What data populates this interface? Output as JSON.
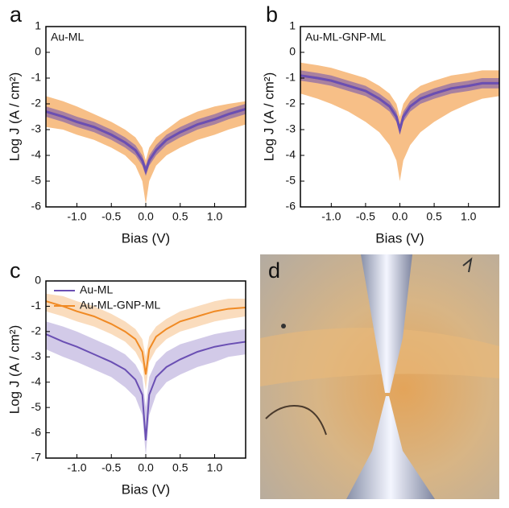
{
  "chart_data": [
    {
      "type": "band-line",
      "panel_label": "a",
      "annotation": "Au-ML",
      "x_label": "Bias (V)",
      "y_label": "Log J (A / cm²)",
      "xlim": [
        -1.45,
        1.45
      ],
      "ylim": [
        -6,
        1
      ],
      "xticks": [
        {
          "value": -1,
          "label": "-1.0"
        },
        {
          "value": -0.5,
          "label": "-0.5"
        },
        {
          "value": 0,
          "label": "0.0"
        },
        {
          "value": 0.5,
          "label": "0.5"
        },
        {
          "value": 1,
          "label": "1.0"
        }
      ],
      "yticks": [
        -6,
        -5,
        -4,
        -3,
        -2,
        -1,
        0,
        1
      ],
      "x": [
        -1.45,
        -1.2,
        -1.0,
        -0.75,
        -0.5,
        -0.3,
        -0.15,
        -0.05,
        0,
        0.05,
        0.15,
        0.3,
        0.5,
        0.75,
        1.0,
        1.2,
        1.45
      ],
      "series": [
        {
          "color": "#f08a24",
          "values": [
            -2.3,
            -2.5,
            -2.7,
            -2.9,
            -3.2,
            -3.5,
            -3.8,
            -4.2,
            -4.6,
            -4.2,
            -3.8,
            -3.4,
            -3.1,
            -2.8,
            -2.6,
            -2.4,
            -2.2
          ],
          "upper": [
            -1.7,
            -1.9,
            -2.1,
            -2.4,
            -2.7,
            -3.0,
            -3.3,
            -3.7,
            -4.2,
            -3.7,
            -3.3,
            -3.0,
            -2.6,
            -2.3,
            -2.1,
            -2.0,
            -1.9
          ],
          "lower": [
            -2.9,
            -3.0,
            -3.2,
            -3.4,
            -3.7,
            -4.0,
            -4.4,
            -5.0,
            -5.9,
            -5.0,
            -4.4,
            -4.0,
            -3.7,
            -3.4,
            -3.2,
            -3.0,
            -2.8
          ]
        },
        {
          "color": "#6a4fb3",
          "values": [
            -2.3,
            -2.5,
            -2.7,
            -2.9,
            -3.2,
            -3.5,
            -3.8,
            -4.2,
            -4.6,
            -4.2,
            -3.8,
            -3.4,
            -3.1,
            -2.8,
            -2.6,
            -2.4,
            -2.2
          ],
          "upper": [
            -2.1,
            -2.3,
            -2.5,
            -2.7,
            -3.0,
            -3.3,
            -3.6,
            -4.0,
            -4.4,
            -4.0,
            -3.6,
            -3.2,
            -2.9,
            -2.6,
            -2.4,
            -2.2,
            -2.0
          ],
          "lower": [
            -2.5,
            -2.7,
            -2.9,
            -3.1,
            -3.4,
            -3.7,
            -4.0,
            -4.4,
            -4.8,
            -4.4,
            -4.0,
            -3.6,
            -3.3,
            -3.0,
            -2.8,
            -2.6,
            -2.4
          ]
        }
      ]
    },
    {
      "type": "band-line",
      "panel_label": "b",
      "annotation": "Au-ML-GNP-ML",
      "x_label": "Bias (V)",
      "y_label": "Log J (A / cm²)",
      "xlim": [
        -1.45,
        1.45
      ],
      "ylim": [
        -6,
        1
      ],
      "xticks": [
        {
          "value": -1,
          "label": "-1.0"
        },
        {
          "value": -0.5,
          "label": "-0.5"
        },
        {
          "value": 0,
          "label": "0.0"
        },
        {
          "value": 0.5,
          "label": "0.5"
        },
        {
          "value": 1,
          "label": "1.0"
        }
      ],
      "yticks": [
        -6,
        -5,
        -4,
        -3,
        -2,
        -1,
        0,
        1
      ],
      "x": [
        -1.45,
        -1.2,
        -1.0,
        -0.75,
        -0.5,
        -0.3,
        -0.15,
        -0.05,
        0,
        0.05,
        0.15,
        0.3,
        0.5,
        0.75,
        1.0,
        1.2,
        1.45
      ],
      "series": [
        {
          "color": "#f08a24",
          "values": [
            -0.9,
            -1.0,
            -1.1,
            -1.3,
            -1.5,
            -1.8,
            -2.1,
            -2.5,
            -3.0,
            -2.5,
            -2.1,
            -1.8,
            -1.6,
            -1.4,
            -1.3,
            -1.2,
            -1.2
          ],
          "upper": [
            -0.4,
            -0.5,
            -0.6,
            -0.8,
            -1.0,
            -1.3,
            -1.6,
            -2.0,
            -2.5,
            -2.0,
            -1.6,
            -1.3,
            -1.1,
            -0.9,
            -0.8,
            -0.7,
            -0.7
          ],
          "lower": [
            -1.6,
            -1.8,
            -2.0,
            -2.3,
            -2.7,
            -3.1,
            -3.6,
            -4.2,
            -5.0,
            -4.2,
            -3.6,
            -3.1,
            -2.7,
            -2.3,
            -2.0,
            -1.8,
            -1.7
          ]
        },
        {
          "color": "#6a4fb3",
          "values": [
            -0.9,
            -1.0,
            -1.1,
            -1.3,
            -1.5,
            -1.8,
            -2.1,
            -2.5,
            -3.0,
            -2.5,
            -2.1,
            -1.8,
            -1.6,
            -1.4,
            -1.3,
            -1.2,
            -1.2
          ],
          "upper": [
            -0.7,
            -0.8,
            -0.9,
            -1.1,
            -1.3,
            -1.6,
            -1.9,
            -2.3,
            -2.8,
            -2.3,
            -1.9,
            -1.6,
            -1.4,
            -1.2,
            -1.1,
            -1.0,
            -1.0
          ],
          "lower": [
            -1.1,
            -1.2,
            -1.3,
            -1.5,
            -1.7,
            -2.0,
            -2.3,
            -2.7,
            -3.2,
            -2.7,
            -2.3,
            -2.0,
            -1.8,
            -1.6,
            -1.5,
            -1.4,
            -1.4
          ]
        }
      ]
    },
    {
      "type": "band-line",
      "panel_label": "c",
      "x_label": "Bias (V)",
      "y_label": "Log J (A / cm²)",
      "xlim": [
        -1.45,
        1.45
      ],
      "ylim": [
        -7,
        0
      ],
      "xticks": [
        {
          "value": -1,
          "label": "-1.0"
        },
        {
          "value": -0.5,
          "label": "-0.5"
        },
        {
          "value": 0,
          "label": "0.0"
        },
        {
          "value": 0.5,
          "label": "0.5"
        },
        {
          "value": 1,
          "label": "1.0"
        }
      ],
      "yticks": [
        -7,
        -6,
        -5,
        -4,
        -3,
        -2,
        -1,
        0
      ],
      "legend": "upper left",
      "x": [
        -1.45,
        -1.2,
        -1.0,
        -0.75,
        -0.5,
        -0.3,
        -0.15,
        -0.05,
        0,
        0.05,
        0.15,
        0.3,
        0.5,
        0.75,
        1.0,
        1.2,
        1.45
      ],
      "series": [
        {
          "name": "Au-ML",
          "color": "#6a4fb3",
          "values": [
            -2.1,
            -2.4,
            -2.6,
            -2.9,
            -3.2,
            -3.5,
            -3.9,
            -4.5,
            -6.3,
            -4.5,
            -3.8,
            -3.4,
            -3.1,
            -2.8,
            -2.6,
            -2.5,
            -2.4
          ],
          "upper": [
            -1.6,
            -1.8,
            -2.0,
            -2.3,
            -2.6,
            -2.9,
            -3.3,
            -3.8,
            -5.0,
            -3.8,
            -3.2,
            -2.8,
            -2.5,
            -2.3,
            -2.1,
            -2.0,
            -1.9
          ],
          "lower": [
            -2.7,
            -3.0,
            -3.2,
            -3.5,
            -3.8,
            -4.2,
            -4.6,
            -5.3,
            -6.9,
            -5.3,
            -4.5,
            -4.0,
            -3.7,
            -3.4,
            -3.2,
            -3.0,
            -2.9
          ]
        },
        {
          "name": "Au-ML-GNP-ML",
          "color": "#f08a24",
          "values": [
            -0.8,
            -1.0,
            -1.2,
            -1.4,
            -1.7,
            -2.0,
            -2.3,
            -2.8,
            -3.7,
            -2.7,
            -2.2,
            -1.9,
            -1.6,
            -1.4,
            -1.2,
            -1.1,
            -1.05
          ],
          "upper": [
            -0.5,
            -0.6,
            -0.8,
            -1.0,
            -1.3,
            -1.6,
            -1.9,
            -2.3,
            -3.0,
            -2.2,
            -1.8,
            -1.5,
            -1.2,
            -1.0,
            -0.8,
            -0.7,
            -0.7
          ],
          "lower": [
            -1.2,
            -1.4,
            -1.6,
            -1.8,
            -2.1,
            -2.4,
            -2.8,
            -3.3,
            -4.3,
            -3.2,
            -2.7,
            -2.3,
            -2.0,
            -1.8,
            -1.6,
            -1.5,
            -1.4
          ]
        }
      ]
    },
    {
      "type": "image",
      "panel_label": "d"
    }
  ]
}
